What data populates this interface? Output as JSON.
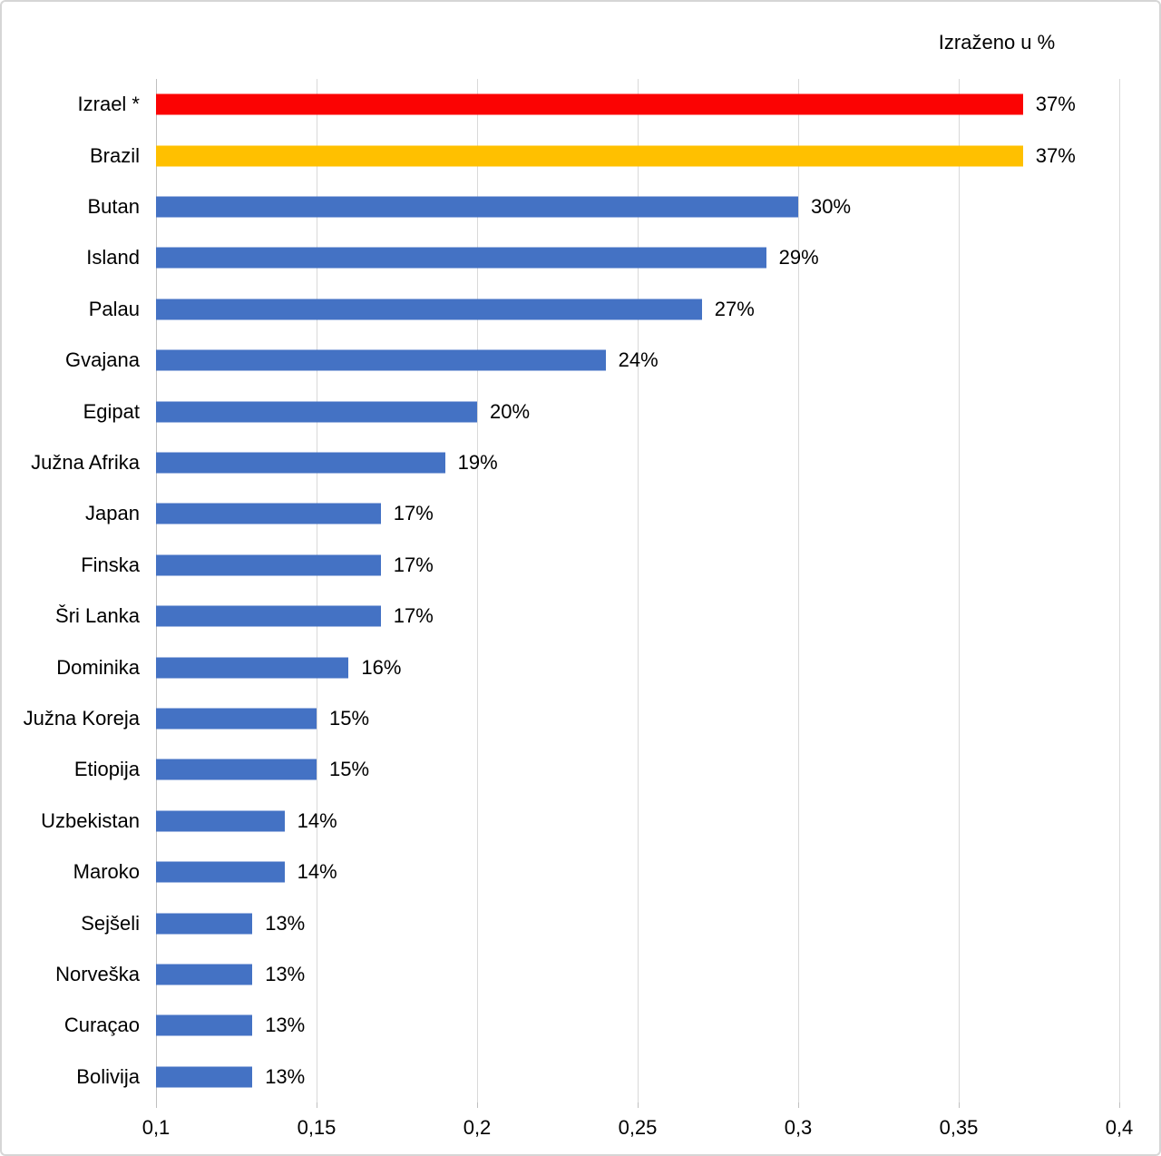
{
  "chart_data": {
    "type": "bar",
    "orientation": "horizontal",
    "title": "Izraženo u %",
    "categories": [
      "Izrael *",
      "Brazil",
      "Butan",
      "Island",
      "Palau",
      "Gvajana",
      "Egipat",
      "Južna Afrika",
      "Japan",
      "Finska",
      "Šri Lanka",
      "Dominika",
      "Južna Koreja",
      "Etiopija",
      "Uzbekistan",
      "Maroko",
      "Sejšeli",
      "Norveška",
      "Curaçao",
      "Bolivija"
    ],
    "values": [
      0.37,
      0.37,
      0.3,
      0.29,
      0.27,
      0.24,
      0.2,
      0.19,
      0.17,
      0.17,
      0.17,
      0.16,
      0.15,
      0.15,
      0.14,
      0.14,
      0.13,
      0.13,
      0.13,
      0.13
    ],
    "value_labels": [
      "37%",
      "37%",
      "30%",
      "29%",
      "27%",
      "24%",
      "20%",
      "19%",
      "17%",
      "17%",
      "17%",
      "16%",
      "15%",
      "15%",
      "14%",
      "14%",
      "13%",
      "13%",
      "13%",
      "13%"
    ],
    "bar_colors": [
      "#fb0303",
      "#ffc000",
      "#4472c4",
      "#4472c4",
      "#4472c4",
      "#4472c4",
      "#4472c4",
      "#4472c4",
      "#4472c4",
      "#4472c4",
      "#4472c4",
      "#4472c4",
      "#4472c4",
      "#4472c4",
      "#4472c4",
      "#4472c4",
      "#4472c4",
      "#4472c4",
      "#4472c4",
      "#4472c4"
    ],
    "xlabel": "",
    "ylabel": "",
    "x_axis": {
      "min": 0.1,
      "max": 0.4,
      "step": 0.05,
      "tick_labels": [
        "0,1",
        "0,15",
        "0,2",
        "0,25",
        "0,3",
        "0,35",
        "0,4"
      ]
    },
    "grid": "vertical-only",
    "legend": "none",
    "colors": {
      "highlight_red": "#fb0303",
      "highlight_gold": "#ffc000",
      "default_blue": "#4472c4",
      "gridline": "#d9d9d9",
      "text": "#000000"
    }
  }
}
